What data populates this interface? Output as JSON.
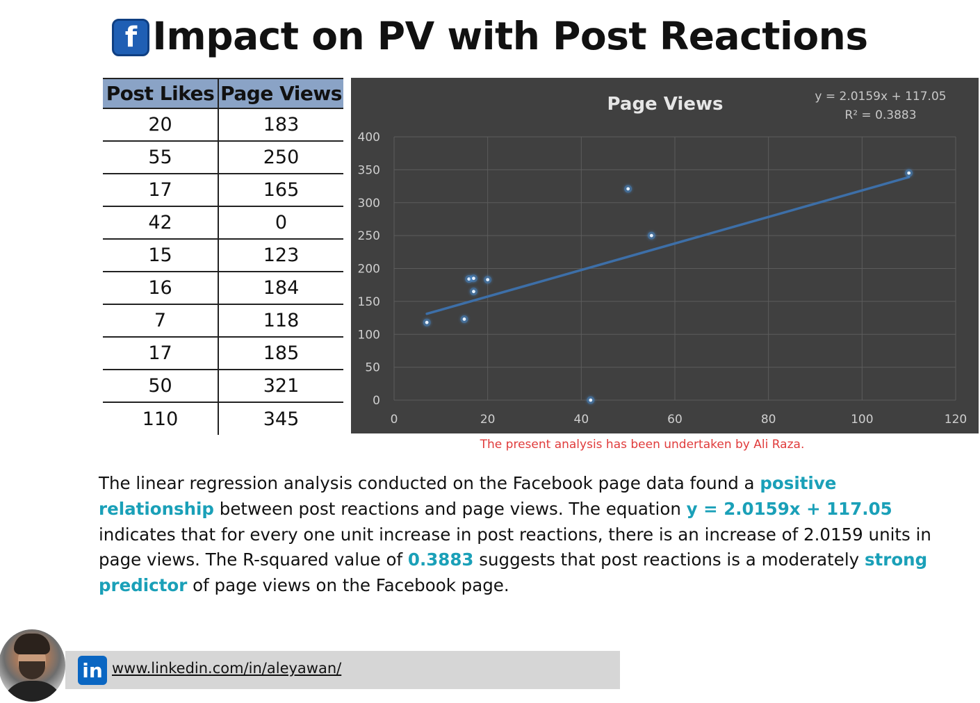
{
  "header": {
    "title": "Impact on PV with Post Reactions",
    "icon": "facebook-icon",
    "icon_glyph": "f",
    "icon_color": "#1f5fb4"
  },
  "table": {
    "headers": [
      "Post Likes",
      "Page Views"
    ],
    "rows": [
      [
        "20",
        "183"
      ],
      [
        "55",
        "250"
      ],
      [
        "17",
        "165"
      ],
      [
        "42",
        "0"
      ],
      [
        "15",
        "123"
      ],
      [
        "16",
        "184"
      ],
      [
        "7",
        "118"
      ],
      [
        "17",
        "185"
      ],
      [
        "50",
        "321"
      ],
      [
        "110",
        "345"
      ]
    ],
    "header_color": "#8aa3c6"
  },
  "chart_data": {
    "type": "scatter",
    "title": "Page Views",
    "xlabel": "",
    "ylabel": "",
    "x": [
      20,
      55,
      17,
      42,
      15,
      16,
      7,
      17,
      50,
      110
    ],
    "y": [
      183,
      250,
      165,
      0,
      123,
      184,
      118,
      185,
      321,
      345
    ],
    "xlim": [
      0,
      120
    ],
    "ylim": [
      0,
      400
    ],
    "x_ticks": [
      0,
      20,
      40,
      60,
      80,
      100,
      120
    ],
    "y_ticks": [
      0,
      50,
      100,
      150,
      200,
      250,
      300,
      350,
      400
    ],
    "grid": true,
    "trendline": {
      "type": "linear",
      "slope": 2.0159,
      "intercept": 117.05,
      "x_range": [
        7,
        110
      ],
      "equation_label": "y = 2.0159x + 117.05",
      "r2_label": "R² = 0.3883"
    },
    "background_color": "#404040",
    "point_color": "#4a90d9",
    "line_color": "#3d6fa8"
  },
  "credit": "The present analysis has been undertaken by Ali Raza.",
  "description": {
    "parts": [
      {
        "text": "The linear regression analysis conducted on the Facebook page data found a ",
        "hl": false
      },
      {
        "text": "positive relationship",
        "hl": true
      },
      {
        "text": " between post reactions and page views. The equation ",
        "hl": false
      },
      {
        "text": "y = 2.0159x + 117.05",
        "hl": true
      },
      {
        "text": " indicates that for every one unit increase in post reactions, there is an increase of 2.0159 units in page views. The R-squared value of ",
        "hl": false
      },
      {
        "text": "0.3883",
        "hl": true
      },
      {
        "text": " suggests that post reactions is a moderately ",
        "hl": false
      },
      {
        "text": "strong predictor",
        "hl": true
      },
      {
        "text": " of page views on the Facebook page.",
        "hl": false
      }
    ],
    "highlight_color": "#1aa0b8"
  },
  "footer": {
    "avatar": "profile-photo",
    "linkedin_icon": "linkedin-icon",
    "linkedin_glyph": "in",
    "link_text": "www.linkedin.com/in/aleyawan/"
  }
}
